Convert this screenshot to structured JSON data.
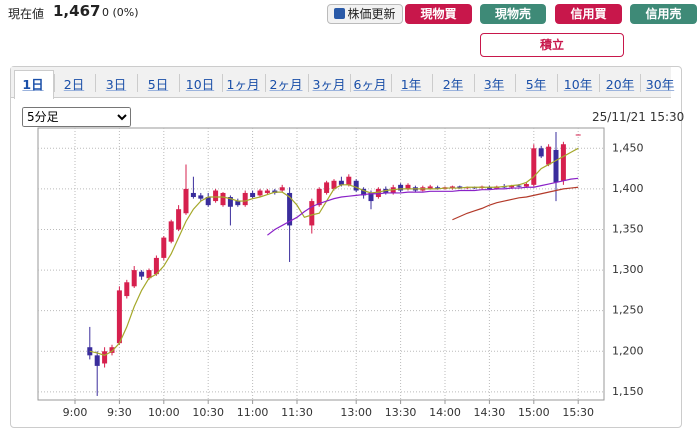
{
  "header": {
    "label": "現在値",
    "price": "1,467",
    "change": "0 (0%)"
  },
  "buttons": [
    "株価更新",
    "現物買",
    "現物売",
    "信用買",
    "信用売"
  ],
  "accumulate": "積立",
  "tabs": [
    "1日",
    "2日",
    "3日",
    "5日",
    "10日",
    "1ヶ月",
    "2ヶ月",
    "3ヶ月",
    "6ヶ月",
    "1年",
    "2年",
    "3年",
    "5年",
    "10年",
    "20年",
    "30年"
  ],
  "interval": "5分足",
  "timestamp": "25/11/21 15:30",
  "chart_data": {
    "type": "candlestick",
    "up_color": "#d6204e",
    "down_color": "#3a2d9c",
    "grid": true,
    "categories": [
      "9:00",
      null,
      null,
      null,
      null,
      null,
      "9:30",
      null,
      null,
      null,
      null,
      null,
      "10:00",
      null,
      null,
      null,
      null,
      null,
      "10:30",
      null,
      null,
      null,
      null,
      null,
      "11:00",
      null,
      null,
      null,
      null,
      null,
      "11:30",
      null,
      null,
      null,
      null,
      null,
      null,
      null,
      "13:00",
      null,
      null,
      null,
      null,
      null,
      "13:30",
      null,
      null,
      null,
      null,
      null,
      "14:00",
      null,
      null,
      null,
      null,
      null,
      "14:30",
      null,
      null,
      null,
      null,
      null,
      "15:00",
      null,
      null,
      null,
      null,
      null,
      "15:30"
    ],
    "open": [
      null,
      null,
      1205,
      1195,
      1185,
      1198,
      1210,
      1268,
      1280,
      1298,
      1290,
      1295,
      1315,
      1335,
      1350,
      1370,
      1395,
      1392,
      1390,
      1385,
      1380,
      1390,
      1385,
      1380,
      1395,
      1392,
      1395,
      1398,
      1398,
      1395,
      null,
      null,
      1355,
      1380,
      1395,
      1400,
      1410,
      1405,
      1410,
      1400,
      1395,
      1390,
      1400,
      1395,
      1405,
      1400,
      1402,
      1398,
      1400,
      1402,
      1400,
      1401,
      1403,
      1401,
      1402,
      1401,
      1402,
      1400,
      1403,
      1402,
      1404,
      1403,
      1405,
      1450,
      1430,
      1448,
      1410,
      null,
      1467
    ],
    "high": [
      null,
      null,
      1230,
      1200,
      1205,
      1208,
      1280,
      1288,
      1305,
      1300,
      1302,
      1318,
      1342,
      1362,
      1380,
      1430,
      1415,
      1395,
      1395,
      1400,
      1396,
      1392,
      1388,
      1398,
      1398,
      1400,
      1400,
      1400,
      1405,
      1402,
      null,
      null,
      1388,
      1402,
      1410,
      1412,
      1415,
      1418,
      1412,
      1402,
      1398,
      1402,
      1403,
      1405,
      1407,
      1407,
      1404,
      1404,
      1405,
      1404,
      1403,
      1404,
      1404,
      1403,
      1403,
      1404,
      1404,
      1404,
      1406,
      1405,
      1406,
      1408,
      1455,
      1453,
      1455,
      1470,
      1458,
      null,
      1467
    ],
    "low": [
      null,
      null,
      1190,
      1145,
      1180,
      1195,
      1208,
      1265,
      1278,
      1288,
      1288,
      1293,
      1312,
      1333,
      1348,
      1368,
      1388,
      1385,
      1378,
      1383,
      1378,
      1355,
      1378,
      1378,
      1388,
      1390,
      1393,
      1393,
      1396,
      1310,
      null,
      null,
      1345,
      1378,
      1393,
      1398,
      1403,
      1403,
      1396,
      1388,
      1375,
      1388,
      1393,
      1393,
      1396,
      1398,
      1396,
      1397,
      1399,
      1399,
      1399,
      1399,
      1400,
      1400,
      1400,
      1400,
      1399,
      1399,
      1401,
      1400,
      1402,
      1401,
      1403,
      1438,
      1428,
      1385,
      1405,
      null,
      1467
    ],
    "close": [
      null,
      null,
      1195,
      1182,
      1200,
      1205,
      1275,
      1285,
      1300,
      1292,
      1300,
      1315,
      1340,
      1360,
      1375,
      1400,
      1390,
      1388,
      1380,
      1398,
      1395,
      1378,
      1380,
      1395,
      1390,
      1398,
      1398,
      1395,
      1402,
      1355,
      null,
      null,
      1385,
      1400,
      1408,
      1410,
      1405,
      1415,
      1398,
      1392,
      1385,
      1400,
      1395,
      1402,
      1398,
      1405,
      1398,
      1402,
      1403,
      1400,
      1402,
      1403,
      1401,
      1402,
      1401,
      1403,
      1400,
      1403,
      1402,
      1404,
      1403,
      1406,
      1450,
      1440,
      1452,
      1408,
      1455,
      null,
      1467
    ],
    "lines": [
      {
        "color": "#a5a82a",
        "values": [
          null,
          null,
          1200,
          1198,
          1195,
          1200,
          1210,
          1230,
          1255,
          1275,
          1290,
          1295,
          1305,
          1320,
          1340,
          1360,
          1375,
          1385,
          1390,
          1390,
          1390,
          1388,
          1385,
          1385,
          1388,
          1390,
          1393,
          1396,
          1396,
          1390,
          1380,
          1365,
          1368,
          1370,
          1385,
          1400,
          1405,
          1405,
          1402,
          1398,
          1395,
          1396,
          1398,
          1399,
          1400,
          1400,
          1400,
          1400,
          1400,
          1400,
          1401,
          1401,
          1401,
          1402,
          1402,
          1402,
          1402,
          1402,
          1403,
          1404,
          1405,
          1408,
          1415,
          1425,
          1430,
          1435,
          1440,
          1445,
          1450
        ]
      },
      {
        "color": "#8a22c8",
        "values": [
          null,
          null,
          null,
          null,
          null,
          null,
          null,
          null,
          null,
          null,
          null,
          null,
          null,
          null,
          null,
          null,
          null,
          null,
          null,
          null,
          null,
          null,
          null,
          null,
          null,
          null,
          1343,
          1350,
          1355,
          1360,
          1365,
          1372,
          1378,
          1382,
          1385,
          1388,
          1390,
          1391,
          1392,
          1393,
          1394,
          1394,
          1395,
          1395,
          1395,
          1396,
          1396,
          1396,
          1397,
          1397,
          1397,
          1397,
          1398,
          1398,
          1398,
          1399,
          1399,
          1400,
          1400,
          1401,
          1401,
          1402,
          1402,
          1404,
          1406,
          1408,
          1410,
          1412,
          1413
        ]
      },
      {
        "color": "#b33a2a",
        "values": [
          null,
          null,
          null,
          null,
          null,
          null,
          null,
          null,
          null,
          null,
          null,
          null,
          null,
          null,
          null,
          null,
          null,
          null,
          null,
          null,
          null,
          null,
          null,
          null,
          null,
          null,
          null,
          null,
          null,
          null,
          null,
          null,
          null,
          null,
          null,
          null,
          null,
          null,
          null,
          null,
          null,
          null,
          null,
          null,
          null,
          null,
          null,
          null,
          null,
          null,
          null,
          1362,
          1366,
          1370,
          1373,
          1376,
          1380,
          1383,
          1385,
          1387,
          1389,
          1390,
          1392,
          1394,
          1396,
          1398,
          1400,
          1401,
          1402
        ]
      }
    ],
    "ylim": [
      1140,
      1475
    ],
    "yticks": [
      {
        "value": 1150,
        "label": "1,150"
      },
      {
        "value": 1200,
        "label": "1,200"
      },
      {
        "value": 1250,
        "label": "1,250"
      },
      {
        "value": 1300,
        "label": "1,300"
      },
      {
        "value": 1350,
        "label": "1,350"
      },
      {
        "value": 1400,
        "label": "1,400"
      },
      {
        "value": 1450,
        "label": "1,450"
      }
    ]
  }
}
